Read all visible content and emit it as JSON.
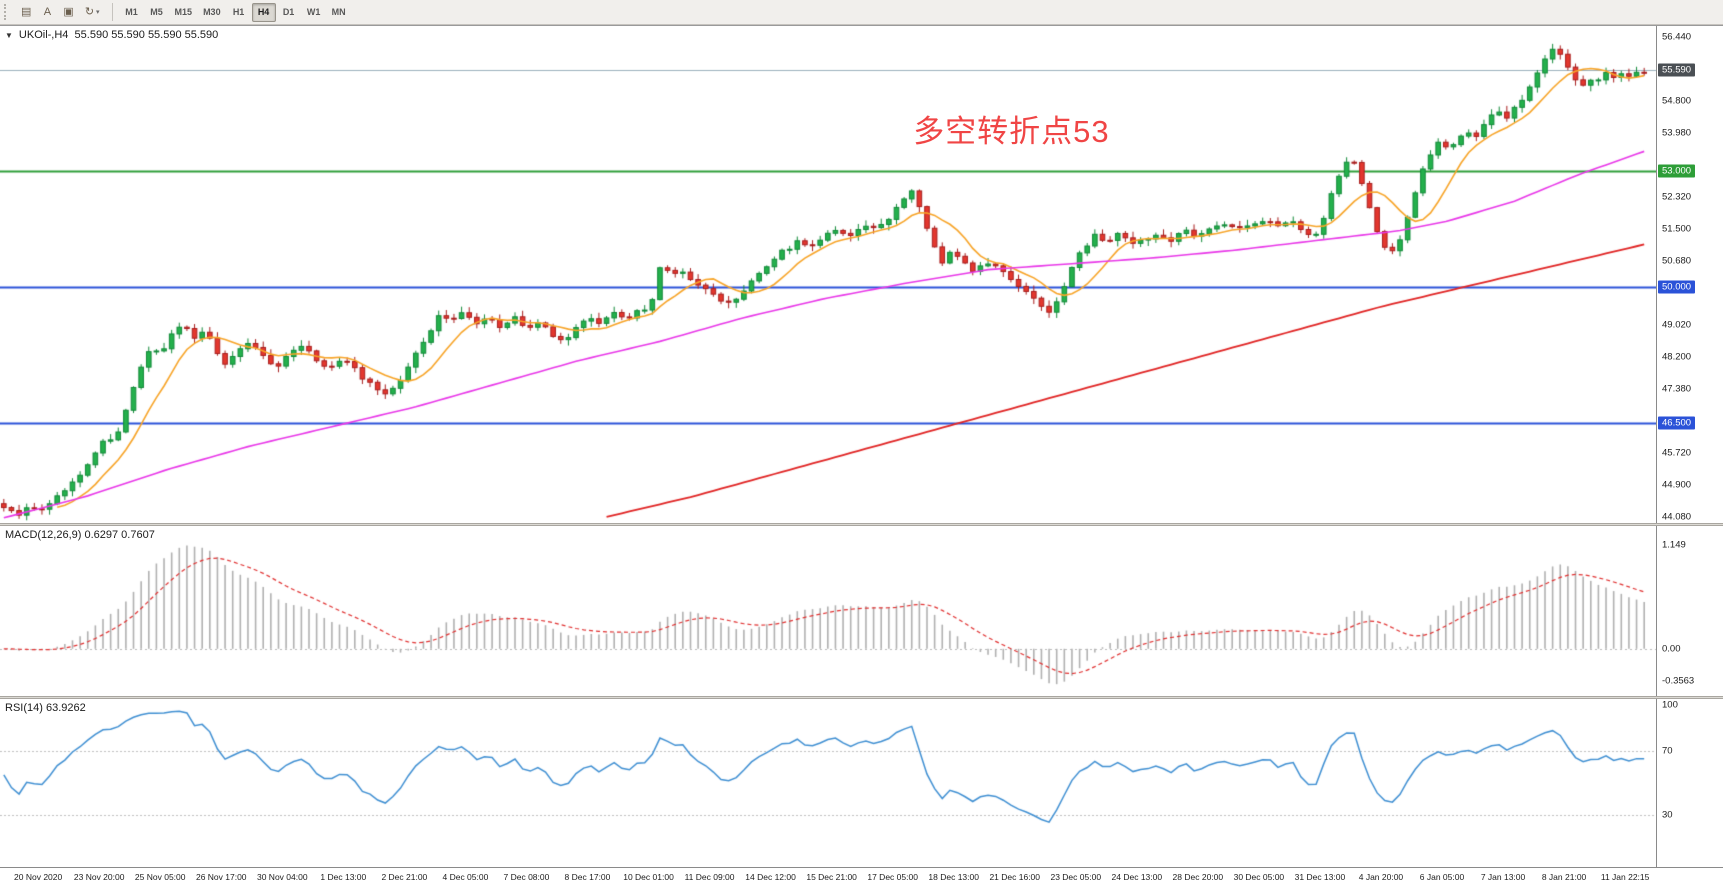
{
  "toolbar": {
    "icons": [
      {
        "name": "chart-list-icon",
        "glyph": "▤"
      },
      {
        "name": "text-tool-icon",
        "glyph": "A"
      },
      {
        "name": "chart-window-icon",
        "glyph": "▣"
      },
      {
        "name": "cycles-icon",
        "glyph": "↻",
        "dropdown": true
      }
    ],
    "dropdown_glyph": "▾",
    "timeframes": [
      "M1",
      "M5",
      "M15",
      "M30",
      "H1",
      "H4",
      "D1",
      "W1",
      "MN"
    ],
    "active_timeframe": "H4"
  },
  "chart_data": {
    "type": "candlestick",
    "symbol": "UKOil-",
    "timeframe": "H4",
    "marker": "▼",
    "caption": "UKOil-,H4  55.590 55.590 55.590 55.590",
    "ohlc_display": [
      "55.590",
      "55.590",
      "55.590",
      "55.590"
    ],
    "bars": 216,
    "annotation": {
      "text": "多空转折点53",
      "color": "#f04545"
    },
    "price_axis": {
      "min": 44.02,
      "max": 56.63,
      "ticks": [
        "56.440",
        "54.800",
        "53.980",
        "52.320",
        "51.500",
        "50.680",
        "49.020",
        "48.200",
        "47.380",
        "45.720",
        "44.900",
        "44.080"
      ],
      "badges": [
        {
          "label": "55.590",
          "price": 55.59,
          "color": "#4a4f54"
        },
        {
          "label": "53.000",
          "price": 53.0,
          "color": "#2e9e38"
        },
        {
          "label": "50.000",
          "price": 50.0,
          "color": "#2b52d8"
        },
        {
          "label": "46.500",
          "price": 46.5,
          "color": "#2b52d8"
        }
      ]
    },
    "horizontal_lines": [
      {
        "price": 55.59,
        "color": "#9bb0bd",
        "width": 1
      },
      {
        "price": 53.0,
        "color": "#2e9e38",
        "width": 2
      },
      {
        "price": 50.0,
        "color": "#2b52d8",
        "width": 2
      },
      {
        "price": 46.5,
        "color": "#2b52d8",
        "width": 2
      }
    ],
    "up_color": "#24b04c",
    "up_stroke": "#118a38",
    "down_color": "#e3372e",
    "down_stroke": "#a81d1d",
    "price_keyframes": [
      [
        0,
        44.28
      ],
      [
        0.008,
        44.12
      ],
      [
        0.016,
        44.35
      ],
      [
        0.024,
        44.22
      ],
      [
        0.032,
        44.62
      ],
      [
        0.04,
        44.9
      ],
      [
        0.048,
        45.25
      ],
      [
        0.056,
        45.75
      ],
      [
        0.062,
        46.15
      ],
      [
        0.068,
        45.95
      ],
      [
        0.072,
        46.55
      ],
      [
        0.078,
        47.3
      ],
      [
        0.084,
        47.95
      ],
      [
        0.09,
        48.45
      ],
      [
        0.096,
        48.25
      ],
      [
        0.103,
        48.9
      ],
      [
        0.11,
        49.1
      ],
      [
        0.117,
        48.6
      ],
      [
        0.123,
        48.95
      ],
      [
        0.129,
        48.4
      ],
      [
        0.135,
        47.95
      ],
      [
        0.142,
        48.3
      ],
      [
        0.15,
        48.55
      ],
      [
        0.158,
        48.2
      ],
      [
        0.166,
        47.95
      ],
      [
        0.174,
        48.3
      ],
      [
        0.182,
        48.5
      ],
      [
        0.19,
        48.15
      ],
      [
        0.198,
        47.85
      ],
      [
        0.206,
        48.2
      ],
      [
        0.213,
        47.95
      ],
      [
        0.22,
        47.6
      ],
      [
        0.228,
        47.35
      ],
      [
        0.235,
        47.25
      ],
      [
        0.242,
        47.6
      ],
      [
        0.25,
        48.2
      ],
      [
        0.258,
        48.75
      ],
      [
        0.266,
        49.3
      ],
      [
        0.273,
        49.1
      ],
      [
        0.28,
        49.4
      ],
      [
        0.288,
        49.05
      ],
      [
        0.296,
        49.25
      ],
      [
        0.304,
        48.95
      ],
      [
        0.312,
        49.2
      ],
      [
        0.32,
        48.9
      ],
      [
        0.328,
        49.1
      ],
      [
        0.336,
        48.7
      ],
      [
        0.342,
        48.55
      ],
      [
        0.349,
        48.95
      ],
      [
        0.356,
        49.3
      ],
      [
        0.364,
        49.05
      ],
      [
        0.372,
        49.3
      ],
      [
        0.38,
        49.15
      ],
      [
        0.388,
        49.4
      ],
      [
        0.394,
        49.3
      ],
      [
        0.398,
        50.35
      ],
      [
        0.402,
        50.6
      ],
      [
        0.407,
        50.3
      ],
      [
        0.412,
        50.45
      ],
      [
        0.418,
        50.2
      ],
      [
        0.425,
        50.05
      ],
      [
        0.432,
        49.8
      ],
      [
        0.44,
        49.5
      ],
      [
        0.447,
        49.75
      ],
      [
        0.454,
        50.05
      ],
      [
        0.461,
        50.35
      ],
      [
        0.468,
        50.7
      ],
      [
        0.476,
        50.95
      ],
      [
        0.484,
        51.15
      ],
      [
        0.492,
        51.0
      ],
      [
        0.5,
        51.3
      ],
      [
        0.508,
        51.5
      ],
      [
        0.516,
        51.35
      ],
      [
        0.524,
        51.6
      ],
      [
        0.532,
        51.45
      ],
      [
        0.54,
        51.8
      ],
      [
        0.548,
        52.25
      ],
      [
        0.554,
        52.45
      ],
      [
        0.56,
        51.9
      ],
      [
        0.566,
        51.15
      ],
      [
        0.572,
        50.65
      ],
      [
        0.578,
        50.95
      ],
      [
        0.585,
        50.65
      ],
      [
        0.592,
        50.4
      ],
      [
        0.6,
        50.65
      ],
      [
        0.608,
        50.4
      ],
      [
        0.616,
        50.15
      ],
      [
        0.624,
        49.9
      ],
      [
        0.632,
        49.55
      ],
      [
        0.638,
        49.35
      ],
      [
        0.645,
        49.8
      ],
      [
        0.652,
        50.6
      ],
      [
        0.659,
        51.05
      ],
      [
        0.666,
        51.35
      ],
      [
        0.673,
        51.15
      ],
      [
        0.68,
        51.4
      ],
      [
        0.688,
        51.1
      ],
      [
        0.696,
        51.25
      ],
      [
        0.704,
        51.4
      ],
      [
        0.712,
        51.2
      ],
      [
        0.72,
        51.45
      ],
      [
        0.728,
        51.3
      ],
      [
        0.736,
        51.5
      ],
      [
        0.744,
        51.65
      ],
      [
        0.752,
        51.45
      ],
      [
        0.76,
        51.6
      ],
      [
        0.768,
        51.75
      ],
      [
        0.776,
        51.55
      ],
      [
        0.784,
        51.7
      ],
      [
        0.792,
        51.5
      ],
      [
        0.798,
        51.25
      ],
      [
        0.804,
        51.7
      ],
      [
        0.81,
        52.45
      ],
      [
        0.816,
        53.1
      ],
      [
        0.821,
        53.35
      ],
      [
        0.826,
        52.95
      ],
      [
        0.831,
        52.3
      ],
      [
        0.836,
        51.6
      ],
      [
        0.841,
        51.0
      ],
      [
        0.846,
        50.85
      ],
      [
        0.851,
        51.25
      ],
      [
        0.856,
        51.85
      ],
      [
        0.861,
        52.55
      ],
      [
        0.866,
        53.1
      ],
      [
        0.871,
        53.5
      ],
      [
        0.876,
        53.8
      ],
      [
        0.881,
        53.55
      ],
      [
        0.886,
        53.85
      ],
      [
        0.891,
        54.05
      ],
      [
        0.896,
        53.8
      ],
      [
        0.901,
        54.1
      ],
      [
        0.906,
        54.35
      ],
      [
        0.911,
        54.55
      ],
      [
        0.916,
        54.3
      ],
      [
        0.921,
        54.6
      ],
      [
        0.926,
        54.85
      ],
      [
        0.931,
        55.2
      ],
      [
        0.936,
        55.6
      ],
      [
        0.941,
        55.95
      ],
      [
        0.946,
        56.2
      ],
      [
        0.951,
        55.9
      ],
      [
        0.956,
        55.45
      ],
      [
        0.961,
        55.15
      ],
      [
        0.966,
        55.4
      ],
      [
        0.971,
        55.25
      ],
      [
        0.976,
        55.5
      ],
      [
        0.981,
        55.4
      ],
      [
        0.986,
        55.55
      ],
      [
        0.991,
        55.45
      ],
      [
        1,
        55.59
      ]
    ],
    "moving_averages": [
      {
        "name": "fast",
        "type": "sma",
        "period": 8,
        "color": "#f7a428",
        "width": 1.6
      },
      {
        "name": "mid",
        "color": "#e837e8",
        "width": 1.6,
        "keyframes": [
          [
            0,
            44.05
          ],
          [
            0.05,
            44.6
          ],
          [
            0.1,
            45.3
          ],
          [
            0.15,
            45.9
          ],
          [
            0.2,
            46.4
          ],
          [
            0.25,
            46.9
          ],
          [
            0.3,
            47.5
          ],
          [
            0.35,
            48.1
          ],
          [
            0.4,
            48.6
          ],
          [
            0.45,
            49.2
          ],
          [
            0.5,
            49.7
          ],
          [
            0.55,
            50.1
          ],
          [
            0.6,
            50.45
          ],
          [
            0.65,
            50.6
          ],
          [
            0.7,
            50.75
          ],
          [
            0.75,
            50.95
          ],
          [
            0.8,
            51.2
          ],
          [
            0.85,
            51.45
          ],
          [
            0.88,
            51.7
          ],
          [
            0.92,
            52.2
          ],
          [
            0.96,
            52.9
          ],
          [
            1,
            53.5
          ]
        ]
      },
      {
        "name": "slow",
        "color": "#e02424",
        "width": 1.8,
        "start": 0.365,
        "keyframes": [
          [
            0.365,
            44.05
          ],
          [
            0.42,
            44.6
          ],
          [
            0.48,
            45.3
          ],
          [
            0.54,
            46.0
          ],
          [
            0.6,
            46.7
          ],
          [
            0.66,
            47.4
          ],
          [
            0.72,
            48.1
          ],
          [
            0.78,
            48.8
          ],
          [
            0.84,
            49.5
          ],
          [
            0.9,
            50.1
          ],
          [
            0.95,
            50.6
          ],
          [
            1,
            51.1
          ]
        ]
      }
    ],
    "indicators": [
      {
        "name": "MACD",
        "caption": "MACD(12,26,9) 0.6297 0.7607",
        "params": [
          12,
          26,
          9
        ],
        "values": [
          "0.6297",
          "0.7607"
        ],
        "axis_labels": [
          "1.149",
          "0.00",
          "-0.3563"
        ],
        "range": [
          -0.48,
          1.32
        ],
        "histogram_color": "#b0b0b0",
        "signal_color": "#e03030"
      },
      {
        "name": "RSI",
        "caption": "RSI(14) 63.9262",
        "period": 14,
        "value": "63.9262",
        "axis_labels": [
          "100",
          "70",
          "30"
        ],
        "levels": [
          70,
          30
        ],
        "range": [
          0,
          100
        ],
        "line_color": "#3f8fd2",
        "level_color": "#bfbfbf"
      }
    ],
    "time_axis_labels": [
      "20 Nov 2020",
      "23 Nov 20:00",
      "25 Nov 05:00",
      "26 Nov 17:00",
      "30 Nov 04:00",
      "1 Dec 13:00",
      "2 Dec 21:00",
      "4 Dec 05:00",
      "7 Dec 08:00",
      "8 Dec 17:00",
      "10 Dec 01:00",
      "11 Dec 09:00",
      "14 Dec 12:00",
      "15 Dec 21:00",
      "17 Dec 05:00",
      "18 Dec 13:00",
      "21 Dec 16:00",
      "23 Dec 05:00",
      "24 Dec 13:00",
      "28 Dec 20:00",
      "30 Dec 05:00",
      "31 Dec 13:00",
      "4 Jan 20:00",
      "6 Jan 05:00",
      "7 Jan 13:00",
      "8 Jan 21:00",
      "11 Jan 22:15"
    ]
  }
}
